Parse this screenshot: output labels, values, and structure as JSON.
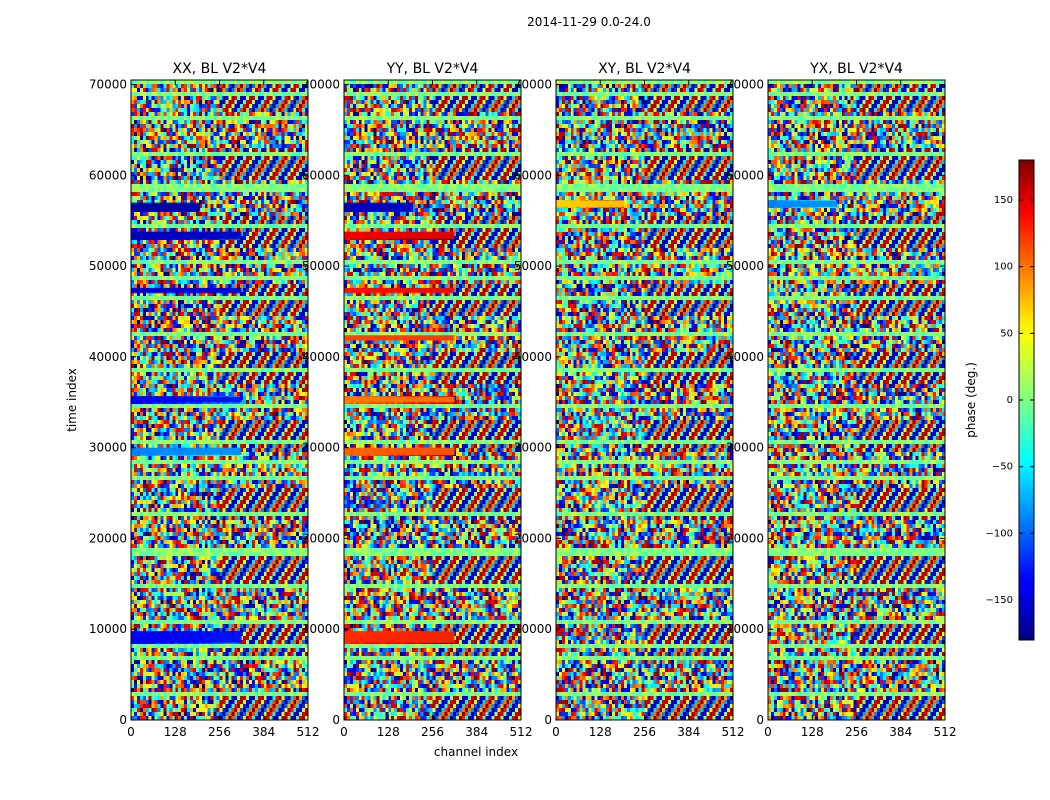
{
  "chart_data": {
    "type": "heatmap",
    "suptitle": "2014-11-29 0.0-24.0",
    "xlabel": "channel index",
    "ylabel": "time index",
    "colorbar_label": "phase (deg.)",
    "colormap": "jet",
    "xlim": [
      0,
      512
    ],
    "ylim": [
      0,
      70500
    ],
    "clim": [
      -180,
      180
    ],
    "xticks": [
      0,
      128,
      256,
      384,
      512
    ],
    "yticks": [
      0,
      10000,
      20000,
      30000,
      40000,
      50000,
      60000,
      70000
    ],
    "colorbar_ticks": [
      150,
      100,
      50,
      0,
      -50,
      -100,
      -150
    ],
    "panels": [
      {
        "title": "XX, BL V2*V4",
        "coherent_bands": [
          {
            "t0": 8500,
            "t1": 9800,
            "phase": -140,
            "ch_end": 320
          },
          {
            "t0": 29200,
            "t1": 30000,
            "phase": -90,
            "ch_end": 320
          },
          {
            "t0": 35000,
            "t1": 35600,
            "phase": -140,
            "ch_end": 320
          },
          {
            "t0": 47000,
            "t1": 47600,
            "phase": -150,
            "ch_end": 320
          },
          {
            "t0": 53000,
            "t1": 53800,
            "phase": -160,
            "ch_end": 320
          },
          {
            "t0": 56000,
            "t1": 57000,
            "phase": -170,
            "ch_end": 200
          }
        ]
      },
      {
        "title": "YY, BL V2*V4",
        "coherent_bands": [
          {
            "t0": 8500,
            "t1": 9800,
            "phase": 120,
            "ch_end": 320
          },
          {
            "t0": 29200,
            "t1": 30000,
            "phase": 100,
            "ch_end": 320
          },
          {
            "t0": 35000,
            "t1": 35600,
            "phase": 90,
            "ch_end": 320
          },
          {
            "t0": 41800,
            "t1": 42400,
            "phase": 110,
            "ch_end": 320
          },
          {
            "t0": 47000,
            "t1": 47600,
            "phase": 130,
            "ch_end": 320
          },
          {
            "t0": 53000,
            "t1": 53800,
            "phase": 140,
            "ch_end": 320
          },
          {
            "t0": 56000,
            "t1": 57000,
            "phase": -160,
            "ch_end": 200
          }
        ]
      },
      {
        "title": "XY, BL V2*V4",
        "coherent_bands": [
          {
            "t0": 56500,
            "t1": 57200,
            "phase": 60,
            "ch_end": 200
          }
        ]
      },
      {
        "title": "YX, BL V2*V4",
        "coherent_bands": [
          {
            "t0": 56500,
            "t1": 57200,
            "phase": -90,
            "ch_end": 200
          }
        ]
      }
    ]
  }
}
